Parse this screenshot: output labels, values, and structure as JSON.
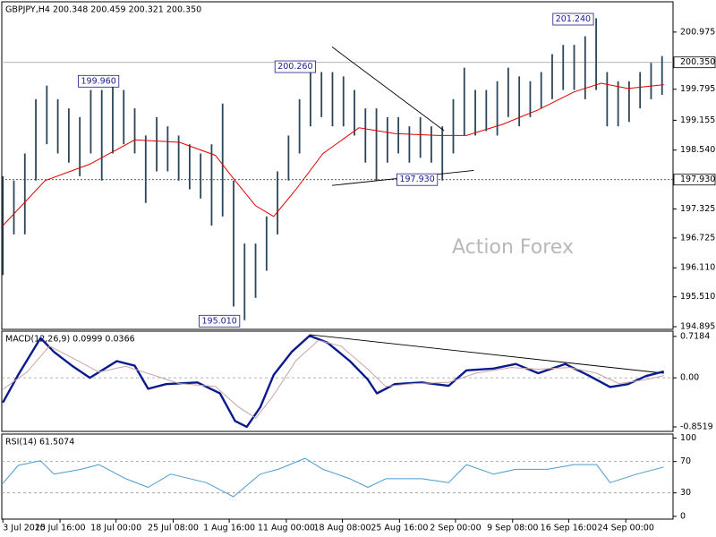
{
  "chart_data": [
    {
      "type": "ohlc",
      "title": "GBPJPY,H4 200.348 200.459 200.321 200.350",
      "watermark": "Action Forex",
      "xlim": [
        -0.1,
        61
      ],
      "x": [
        0,
        1,
        2,
        3,
        4,
        5,
        6,
        7,
        8,
        9,
        10,
        11,
        12,
        13,
        14,
        15,
        16,
        17,
        18,
        19,
        20,
        21,
        22,
        23,
        24,
        25,
        26,
        27,
        28,
        29,
        30,
        31,
        32,
        33,
        34,
        35,
        36,
        37,
        38,
        39,
        40,
        41,
        42,
        43,
        44,
        45,
        46,
        47,
        48,
        49,
        50,
        51,
        52,
        53,
        54,
        55,
        56,
        57,
        58,
        59,
        60
      ],
      "high": [
        198.0,
        197.91,
        198.47,
        199.59,
        199.87,
        199.59,
        199.4,
        199.22,
        199.78,
        199.78,
        199.92,
        199.78,
        199.4,
        198.84,
        199.22,
        199.03,
        198.84,
        198.66,
        198.47,
        198.66,
        199.5,
        197.91,
        196.61,
        196.61,
        197.17,
        198.1,
        198.84,
        199.59,
        200.24,
        200.15,
        200.15,
        200.06,
        199.78,
        199.4,
        199.4,
        199.22,
        199.22,
        199.03,
        199.22,
        199.03,
        199.03,
        199.59,
        200.24,
        199.78,
        199.78,
        199.96,
        200.24,
        200.06,
        199.96,
        200.15,
        200.52,
        200.71,
        200.71,
        200.89,
        201.26,
        200.15,
        199.96,
        199.96,
        200.15,
        200.34,
        200.48
      ],
      "low": [
        195.96,
        196.8,
        196.8,
        197.91,
        198.66,
        198.47,
        198.28,
        198.0,
        198.47,
        197.91,
        198.47,
        198.66,
        198.47,
        197.45,
        198.1,
        198.1,
        197.91,
        197.73,
        197.54,
        196.98,
        197.17,
        195.31,
        195.03,
        195.49,
        196.05,
        196.8,
        197.91,
        198.47,
        199.03,
        199.22,
        199.03,
        199.03,
        198.84,
        198.28,
        197.91,
        198.28,
        198.47,
        198.28,
        198.38,
        198.28,
        197.91,
        198.47,
        198.84,
        198.84,
        198.93,
        198.84,
        199.22,
        199.03,
        199.22,
        199.4,
        199.59,
        199.78,
        199.78,
        199.59,
        199.78,
        199.03,
        199.03,
        199.12,
        199.4,
        199.59,
        199.68
      ],
      "color": "#2b4658",
      "ma": {
        "x": [
          0,
          3.84,
          7.92,
          12,
          16.08,
          19.35,
          21.14,
          23,
          24.65,
          26.69,
          29.14,
          32.41,
          35.67,
          39.67,
          42.2,
          45.47,
          48.73,
          52,
          54.45,
          56.9,
          60.16
        ],
        "values": [
          196.98,
          197.91,
          198.25,
          198.75,
          198.7,
          198.43,
          197.91,
          197.39,
          197.17,
          197.73,
          198.47,
          199,
          198.88,
          198.84,
          198.84,
          199.07,
          199.37,
          199.74,
          199.92,
          199.81,
          199.89
        ],
        "color": "#e00000"
      },
      "ylim": [
        194.84,
        201.6
      ],
      "yticks": [
        200.975,
        199.795,
        199.155,
        {
          "value": 198.54,
          "label": "198.540"
        },
        197.325,
        196.725,
        {
          "value": 196.11,
          "label": "196.110"
        },
        {
          "value": 195.51,
          "label": "195.510"
        },
        194.895
      ],
      "price_lines": [
        {
          "value": 200.35,
          "label": "200.350",
          "style": "solid"
        },
        {
          "value": 197.93,
          "label": "197.930",
          "style": "dotted"
        }
      ],
      "annotations": [
        {
          "x": 10.8,
          "value": 199.96,
          "label": "199.960"
        },
        {
          "x": 28.7,
          "value": 200.26,
          "label": "200.260"
        },
        {
          "x": 54.0,
          "value": 201.24,
          "label": "201.240"
        },
        {
          "x": 39.8,
          "value": 197.93,
          "label": "197.930"
        },
        {
          "x": 21.8,
          "value": 195.01,
          "label": "195.010"
        }
      ],
      "trendlines": [
        {
          "x": [
            29.96,
            40.16
          ],
          "values": [
            200.67,
            198.94
          ]
        },
        {
          "x": [
            29.96,
            42.86
          ],
          "values": [
            197.81,
            198.12
          ]
        }
      ]
    },
    {
      "type": "line",
      "title": "MACD(12,26,9) 0.0999 0.0366",
      "xlim": [
        -0.1,
        61
      ],
      "ylim": [
        -0.93,
        0.81
      ],
      "yticks": [
        0.7184,
        {
          "value": 0,
          "label": "0.00"
        },
        -0.8519
      ],
      "levels": [
        0
      ],
      "series": [
        {
          "color": "#0b1a8c",
          "width": 2.4,
          "x": [
            0,
            1.39,
            3.43,
            4.65,
            6.29,
            7.92,
            10.37,
            12,
            13.22,
            14.86,
            17.71,
            19.76,
            21.14,
            22.2,
            23.43,
            24.65,
            26.29,
            27.92,
            29.55,
            31.59,
            33.22,
            34.04,
            35.67,
            38.12,
            40.57,
            42.2,
            44.65,
            46.69,
            48.73,
            51.18,
            53.22,
            55.27,
            56.9,
            58.53,
            60.16
          ],
          "values": [
            -0.43,
            0.05,
            0.69,
            0.45,
            0.21,
            0,
            0.29,
            0.21,
            -0.19,
            -0.11,
            -0.08,
            -0.27,
            -0.75,
            -0.85,
            -0.51,
            0.05,
            0.45,
            0.73,
            0.61,
            0.29,
            -0.03,
            -0.27,
            -0.11,
            -0.08,
            -0.14,
            0.13,
            0.16,
            0.24,
            0.08,
            0.24,
            0.05,
            -0.16,
            -0.11,
            0.03,
            0.11
          ]
        },
        {
          "color": "#c9a4a4",
          "width": 1,
          "x": [
            0,
            2.2,
            4.24,
            6.29,
            8.73,
            11.18,
            13.63,
            16.08,
            19.35,
            21.39,
            23.02,
            24.65,
            26.69,
            28.73,
            30.78,
            33.22,
            34.86,
            37.31,
            40.57,
            43.02,
            46.29,
            48.73,
            51.59,
            54.04,
            56.08,
            58.53,
            60.16
          ],
          "values": [
            -0.2,
            0.1,
            0.55,
            0.35,
            0.1,
            0.2,
            0.05,
            -0.1,
            -0.15,
            -0.5,
            -0.7,
            -0.3,
            0.3,
            0.65,
            0.55,
            0.15,
            -0.15,
            -0.1,
            -0.08,
            0.08,
            0.18,
            0.15,
            0.18,
            0.08,
            -0.1,
            -0.03,
            0.04
          ]
        }
      ],
      "trendlines": [
        {
          "x": [
            27.92,
            60.16
          ],
          "values": [
            0.75,
            0.08
          ]
        }
      ]
    },
    {
      "type": "line",
      "title": "RSI(14) 61.5074",
      "xlim": [
        -0.1,
        61
      ],
      "ylim": [
        -3.5,
        105
      ],
      "yticks": [
        100,
        70,
        30,
        0
      ],
      "levels": [
        70,
        30
      ],
      "series": [
        {
          "color": "#4a9ad0",
          "width": 1,
          "x": [
            0,
            1.39,
            3.43,
            4.65,
            7.1,
            8.73,
            11.18,
            13.22,
            15.27,
            18.53,
            20.98,
            23.43,
            25.06,
            27.51,
            29.14,
            31.59,
            33.22,
            34.86,
            38.12,
            40.57,
            42.2,
            44.65,
            46.69,
            49.55,
            52,
            54.04,
            55.27,
            57.71,
            60.16
          ],
          "values": [
            42,
            65,
            71,
            54,
            60,
            66,
            48,
            37,
            54,
            43,
            25,
            54,
            60,
            74,
            60,
            48,
            37,
            48,
            48,
            43,
            66,
            54,
            60,
            60,
            66,
            66,
            43,
            54,
            63
          ]
        }
      ],
      "xticks": [
        {
          "value": 0,
          "label": "3 Jul 2025"
        },
        {
          "value": 5.2,
          "label": "10 Jul 16:00"
        },
        {
          "value": 10.3,
          "label": "18 Jul 00:00"
        },
        {
          "value": 15.5,
          "label": "25 Jul 08:00"
        },
        {
          "value": 20.6,
          "label": "1 Aug 16:00"
        },
        {
          "value": 25.8,
          "label": "11 Aug 00:00"
        },
        {
          "value": 30.9,
          "label": "18 Aug 08:00"
        },
        {
          "value": 36.1,
          "label": "25 Aug 16:00"
        },
        {
          "value": 41.2,
          "label": "2 Sep 00:00"
        },
        {
          "value": 46.4,
          "label": "9 Sep 08:00"
        },
        {
          "value": 51.5,
          "label": "16 Sep 16:00"
        },
        {
          "value": 56.7,
          "label": "24 Sep 00:00"
        }
      ]
    }
  ]
}
